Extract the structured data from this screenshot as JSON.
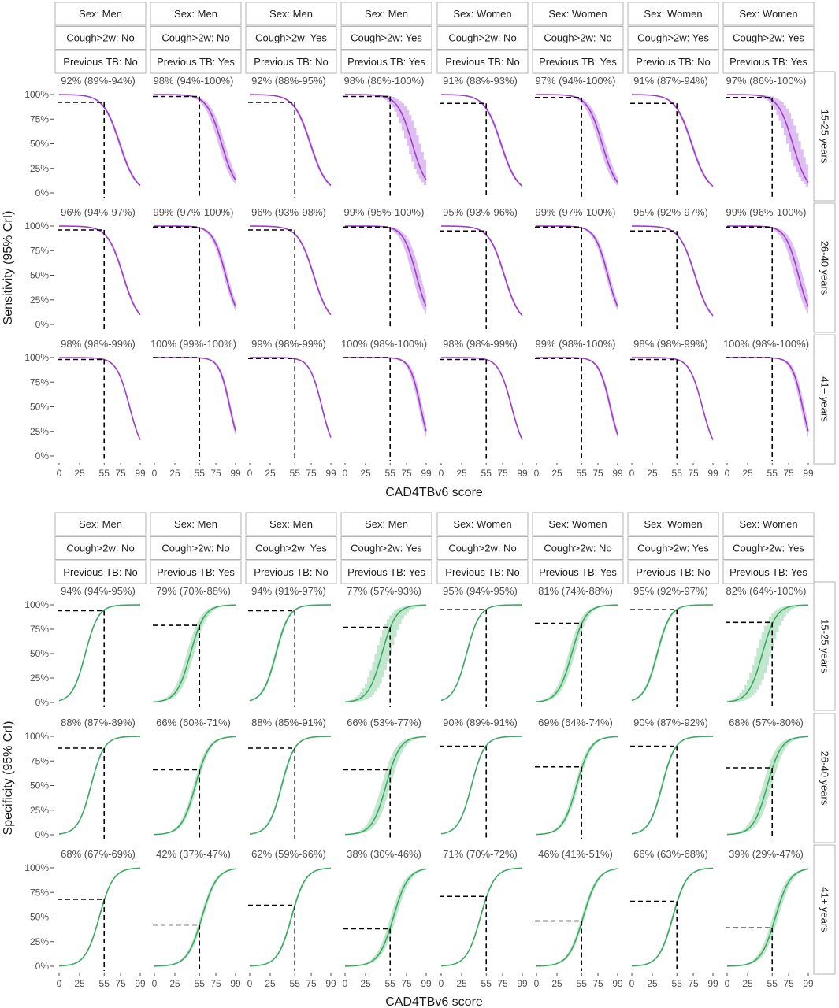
{
  "facets": {
    "columns": [
      [
        "Sex: Men",
        "Cough>2w: No",
        "Previous TB: No"
      ],
      [
        "Sex: Men",
        "Cough>2w: No",
        "Previous TB: Yes"
      ],
      [
        "Sex: Men",
        "Cough>2w: Yes",
        "Previous TB: No"
      ],
      [
        "Sex: Men",
        "Cough>2w: Yes",
        "Previous TB: Yes"
      ],
      [
        "Sex: Women",
        "Cough>2w: No",
        "Previous TB: No"
      ],
      [
        "Sex: Women",
        "Cough>2w: No",
        "Previous TB: Yes"
      ],
      [
        "Sex: Women",
        "Cough>2w: Yes",
        "Previous TB: No"
      ],
      [
        "Sex: Women",
        "Cough>2w: Yes",
        "Previous TB: Yes"
      ]
    ],
    "rows": [
      "15-25 years",
      "26-40 years",
      "41+ years"
    ]
  },
  "colors": {
    "sensitivity_line": "#9c3ec9",
    "sensitivity_band": "#d9b3ee",
    "specificity_line": "#3aaa62",
    "specificity_band": "#b9e3c6"
  },
  "chart_data": [
    {
      "type": "line",
      "measure": "sensitivity",
      "xlabel": "CAD4TBv6 score",
      "ylabel": "Sensitivity (95% CrI)",
      "x_ticks": [
        "0",
        "25",
        "55",
        "75",
        "99"
      ],
      "x_tick_values": [
        0,
        25,
        55,
        75,
        99
      ],
      "y_ticks": [
        "0%",
        "25%",
        "50%",
        "75%",
        "100%"
      ],
      "ylim": [
        0,
        1
      ],
      "xlim": [
        0,
        99
      ],
      "threshold": 55,
      "panels": [
        [
          {
            "label": "92% (89%-94%)",
            "value": 0.92,
            "center": 74,
            "width": 10,
            "band": 1.5
          },
          {
            "label": "98% (94%-100%)",
            "value": 0.98,
            "center": 82,
            "width": 9,
            "band": 4
          },
          {
            "label": "92% (88%-95%)",
            "value": 0.92,
            "center": 74,
            "width": 10,
            "band": 1.5
          },
          {
            "label": "98% (86%-100%)",
            "value": 0.98,
            "center": 82,
            "width": 9,
            "band": 8,
            "stepped": true
          },
          {
            "label": "91% (88%-93%)",
            "value": 0.91,
            "center": 73,
            "width": 10,
            "band": 1.5
          },
          {
            "label": "97% (94%-100%)",
            "value": 0.97,
            "center": 80,
            "width": 9,
            "band": 4
          },
          {
            "label": "91% (87%-94%)",
            "value": 0.91,
            "center": 73,
            "width": 10,
            "band": 1.5
          },
          {
            "label": "97% (86%-100%)",
            "value": 0.97,
            "center": 80,
            "width": 9,
            "band": 8,
            "stepped": true
          }
        ],
        [
          {
            "label": "96% (94%-97%)",
            "value": 0.96,
            "center": 78,
            "width": 9.5,
            "band": 1.2
          },
          {
            "label": "99% (97%-100%)",
            "value": 0.99,
            "center": 87,
            "width": 8,
            "band": 2.5
          },
          {
            "label": "96% (93%-98%)",
            "value": 0.96,
            "center": 78,
            "width": 9.5,
            "band": 1.2
          },
          {
            "label": "99% (95%-100%)",
            "value": 0.99,
            "center": 87,
            "width": 8,
            "band": 5
          },
          {
            "label": "95% (93%-96%)",
            "value": 0.95,
            "center": 77,
            "width": 9.5,
            "band": 1.2
          },
          {
            "label": "99% (97%-100%)",
            "value": 0.99,
            "center": 87,
            "width": 8,
            "band": 2.5
          },
          {
            "label": "95% (92%-97%)",
            "value": 0.95,
            "center": 77,
            "width": 9.5,
            "band": 1.2
          },
          {
            "label": "99% (96%-100%)",
            "value": 0.99,
            "center": 87,
            "width": 8,
            "band": 5
          }
        ],
        [
          {
            "label": "98% (98%-99%)",
            "value": 0.98,
            "center": 86,
            "width": 8,
            "band": 0.8
          },
          {
            "label": "100% (99%-100%)",
            "value": 1.0,
            "center": 92,
            "width": 6.5,
            "band": 1.5
          },
          {
            "label": "99% (98%-99%)",
            "value": 0.99,
            "center": 88,
            "width": 7.5,
            "band": 0.8
          },
          {
            "label": "100% (98%-100%)",
            "value": 1.0,
            "center": 92,
            "width": 6.5,
            "band": 2.5
          },
          {
            "label": "98% (98%-99%)",
            "value": 0.98,
            "center": 86,
            "width": 8,
            "band": 0.8
          },
          {
            "label": "99% (98%-100%)",
            "value": 0.99,
            "center": 90,
            "width": 7,
            "band": 1.5
          },
          {
            "label": "98% (98%-99%)",
            "value": 0.98,
            "center": 86,
            "width": 8,
            "band": 0.8
          },
          {
            "label": "100% (98%-100%)",
            "value": 1.0,
            "center": 92,
            "width": 6.5,
            "band": 2.5
          }
        ]
      ]
    },
    {
      "type": "line",
      "measure": "specificity",
      "xlabel": "CAD4TBv6 score",
      "ylabel": "Specificity (95% CrI)",
      "x_ticks": [
        "0",
        "25",
        "55",
        "75",
        "99"
      ],
      "x_tick_values": [
        0,
        25,
        55,
        75,
        99
      ],
      "y_ticks": [
        "0%",
        "25%",
        "50%",
        "75%",
        "100%"
      ],
      "ylim": [
        0,
        1
      ],
      "xlim": [
        0,
        99
      ],
      "threshold": 55,
      "panels": [
        [
          {
            "label": "94% (94%-95%)",
            "value": 0.94,
            "center": 32,
            "width": 8,
            "band": 0.8
          },
          {
            "label": "79% (70%-88%)",
            "value": 0.79,
            "center": 44,
            "width": 8.5,
            "band": 4.5
          },
          {
            "label": "94% (91%-97%)",
            "value": 0.94,
            "center": 32,
            "width": 8,
            "band": 1.5
          },
          {
            "label": "77% (57%-93%)",
            "value": 0.77,
            "center": 45,
            "width": 8.5,
            "band": 9,
            "stepped": true
          },
          {
            "label": "95% (94%-95%)",
            "value": 0.95,
            "center": 31,
            "width": 8,
            "band": 0.8
          },
          {
            "label": "81% (74%-88%)",
            "value": 0.81,
            "center": 43,
            "width": 8.5,
            "band": 4
          },
          {
            "label": "95% (92%-97%)",
            "value": 0.95,
            "center": 31,
            "width": 8,
            "band": 1.5
          },
          {
            "label": "82% (64%-100%)",
            "value": 0.82,
            "center": 43,
            "width": 8.5,
            "band": 9,
            "stepped": true
          }
        ],
        [
          {
            "label": "88% (87%-89%)",
            "value": 0.88,
            "center": 39,
            "width": 8,
            "band": 0.8
          },
          {
            "label": "66% (60%-71%)",
            "value": 0.66,
            "center": 50,
            "width": 8.5,
            "band": 2.5
          },
          {
            "label": "88% (85%-91%)",
            "value": 0.88,
            "center": 39,
            "width": 8,
            "band": 1.2
          },
          {
            "label": "66% (53%-77%)",
            "value": 0.66,
            "center": 50,
            "width": 8.5,
            "band": 5.5
          },
          {
            "label": "90% (89%-91%)",
            "value": 0.9,
            "center": 37,
            "width": 8,
            "band": 0.8
          },
          {
            "label": "69% (64%-74%)",
            "value": 0.69,
            "center": 49,
            "width": 8.5,
            "band": 2.5
          },
          {
            "label": "90% (87%-92%)",
            "value": 0.9,
            "center": 37,
            "width": 8,
            "band": 1.2
          },
          {
            "label": "68% (57%-80%)",
            "value": 0.68,
            "center": 49,
            "width": 8.5,
            "band": 5.5
          }
        ],
        [
          {
            "label": "68% (67%-69%)",
            "value": 0.68,
            "center": 49,
            "width": 8.5,
            "band": 0.8
          },
          {
            "label": "42% (37%-47%)",
            "value": 0.42,
            "center": 58,
            "width": 9,
            "band": 2
          },
          {
            "label": "62% (59%-66%)",
            "value": 0.62,
            "center": 51,
            "width": 8.5,
            "band": 1.2
          },
          {
            "label": "38% (30%-46%)",
            "value": 0.38,
            "center": 59,
            "width": 9,
            "band": 3.5
          },
          {
            "label": "71% (70%-72%)",
            "value": 0.71,
            "center": 48,
            "width": 8.5,
            "band": 0.8
          },
          {
            "label": "46% (41%-51%)",
            "value": 0.46,
            "center": 57,
            "width": 9,
            "band": 2
          },
          {
            "label": "66% (63%-68%)",
            "value": 0.66,
            "center": 50,
            "width": 8.5,
            "band": 1.2
          },
          {
            "label": "39% (29%-47%)",
            "value": 0.39,
            "center": 59,
            "width": 9,
            "band": 3.5
          }
        ]
      ]
    }
  ]
}
